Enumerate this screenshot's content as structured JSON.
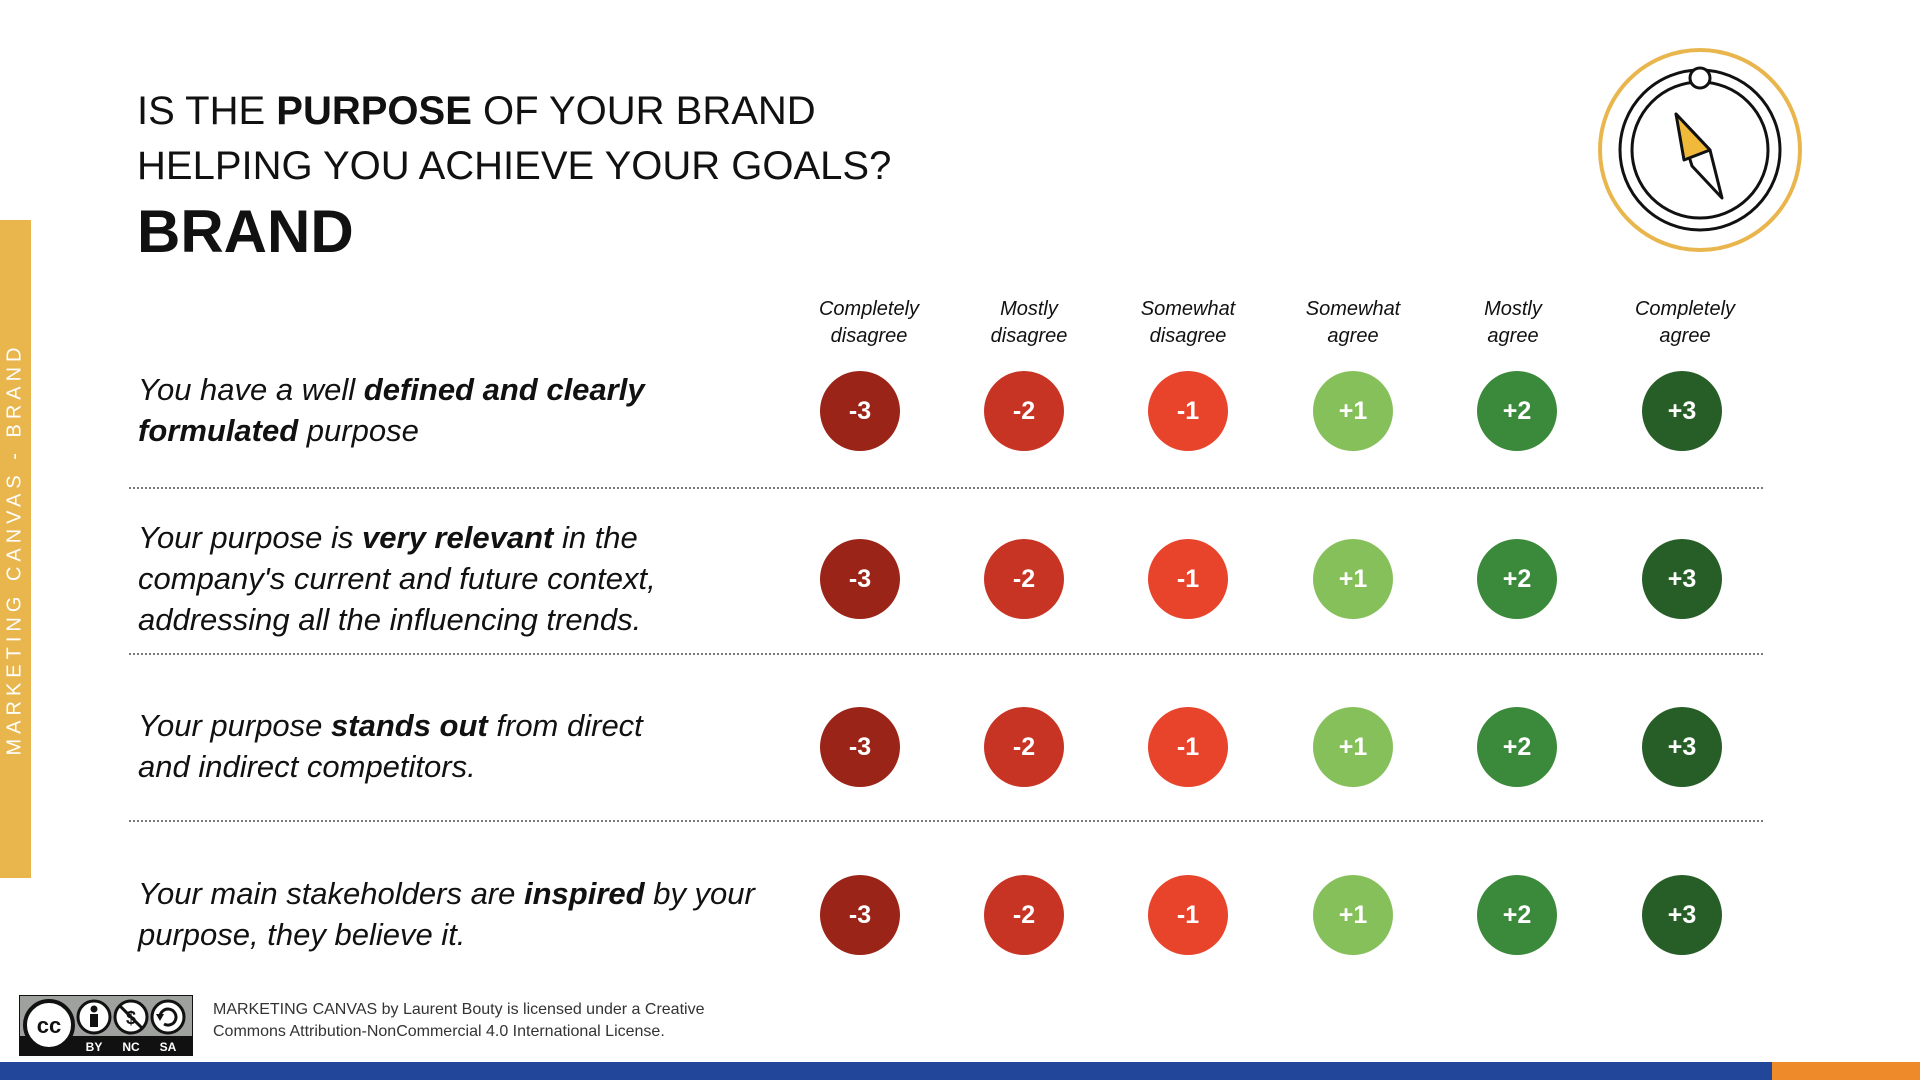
{
  "side_label": "MARKETING CANVAS - BRAND",
  "heading": {
    "line1_pre": "IS THE ",
    "line1_bold": "PURPOSE",
    "line1_post": " OF YOUR BRAND",
    "line2": "HELPING YOU ACHIEVE YOUR GOALS?",
    "title": "BRAND"
  },
  "icon": "compass-icon",
  "scale": [
    {
      "line1": "Completely",
      "line2": "disagree",
      "value": "-3",
      "color": "#9b2418"
    },
    {
      "line1": "Mostly",
      "line2": "disagree",
      "value": "-2",
      "color": "#c83424"
    },
    {
      "line1": "Somewhat",
      "line2": "disagree",
      "value": "-1",
      "color": "#e8432b"
    },
    {
      "line1": "Somewhat",
      "line2": "agree",
      "value": "+1",
      "color": "#86c05a"
    },
    {
      "line1": "Mostly",
      "line2": "agree",
      "value": "+2",
      "color": "#3b8a3b"
    },
    {
      "line1": "Completely",
      "line2": "agree",
      "value": "+3",
      "color": "#275e27"
    }
  ],
  "statements": [
    {
      "parts": [
        {
          "t": "You have a well ",
          "b": false
        },
        {
          "t": "defined and clearly",
          "b": true
        },
        {
          "br": true
        },
        {
          "t": "formulated",
          "b": true
        },
        {
          "t": " purpose",
          "b": false
        }
      ]
    },
    {
      "parts": [
        {
          "t": "Your purpose is ",
          "b": false
        },
        {
          "t": "very relevant",
          "b": true
        },
        {
          "t": " in the",
          "b": false
        },
        {
          "br": true
        },
        {
          "t": "company's current and future context,",
          "b": false
        },
        {
          "br": true
        },
        {
          "t": "addressing all the influencing trends.",
          "b": false
        }
      ]
    },
    {
      "parts": [
        {
          "t": "Your purpose ",
          "b": false
        },
        {
          "t": "stands out",
          "b": true
        },
        {
          "t": " from direct",
          "b": false
        },
        {
          "br": true
        },
        {
          "t": "and indirect competitors.",
          "b": false
        }
      ]
    },
    {
      "parts": [
        {
          "t": "Your main stakeholders are ",
          "b": false
        },
        {
          "t": "inspired",
          "b": true
        },
        {
          "t": " by your",
          "b": false
        },
        {
          "br": true
        },
        {
          "t": "purpose, they believe it.",
          "b": false
        }
      ]
    }
  ],
  "license": {
    "badge": [
      "BY",
      "NC",
      "SA"
    ],
    "line1": "MARKETING CANVAS by Laurent Bouty is licensed under a Creative",
    "line2": "Commons Attribution-NonCommercial 4.0 International License."
  },
  "colors": {
    "accent": "#e9b64e",
    "bottom_bar": "#21469a",
    "bottom_corner": "#ef8a2a"
  }
}
